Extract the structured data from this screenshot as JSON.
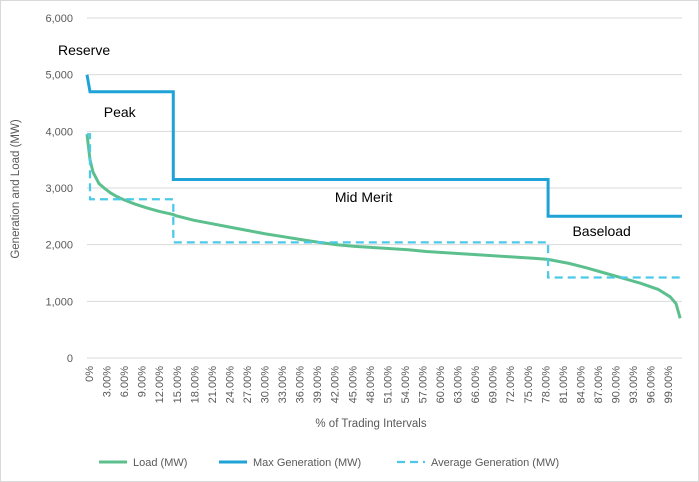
{
  "chart_data": {
    "type": "line",
    "title": "",
    "xlabel": "% of Trading Intervals",
    "ylabel": "Generation and Load (MW)",
    "ylim": [
      0,
      6000
    ],
    "y_ticks": [
      "0",
      "1,000",
      "2,000",
      "3,000",
      "4,000",
      "5,000",
      "6,000"
    ],
    "x_ticks": [
      "0%",
      "3.00%",
      "6.00%",
      "9.00%",
      "12.00%",
      "15.00%",
      "18.00%",
      "21.00%",
      "24.00%",
      "27.00%",
      "30.00%",
      "33.00%",
      "36.00%",
      "39.00%",
      "42.00%",
      "45.00%",
      "48.00%",
      "51.00%",
      "54.00%",
      "57.00%",
      "60.00%",
      "63.00%",
      "66.00%",
      "69.00%",
      "72.00%",
      "75.00%",
      "78.00%",
      "81.00%",
      "84.00%",
      "87.00%",
      "90.00%",
      "93.00%",
      "96.00%",
      "99.00%"
    ],
    "grid": true,
    "legend_position": "bottom",
    "series": [
      {
        "name": "Load (MW)",
        "color": "#5cc08e",
        "style": "solid",
        "x": [
          0,
          0.5,
          1,
          2,
          3,
          4,
          5,
          6,
          8,
          10,
          12,
          14.5,
          15,
          18,
          21,
          24,
          27,
          30,
          33,
          36,
          39,
          42,
          45,
          48,
          51,
          54,
          57,
          60,
          63,
          66,
          69,
          72,
          75,
          77.5,
          78,
          81,
          84,
          87,
          90,
          93,
          96,
          98,
          99,
          99.7
        ],
        "y": [
          3950,
          3500,
          3280,
          3080,
          2990,
          2910,
          2850,
          2800,
          2720,
          2650,
          2590,
          2530,
          2510,
          2430,
          2370,
          2310,
          2250,
          2190,
          2140,
          2090,
          2040,
          2000,
          1970,
          1950,
          1930,
          1910,
          1880,
          1860,
          1840,
          1820,
          1800,
          1780,
          1760,
          1740,
          1730,
          1670,
          1590,
          1500,
          1410,
          1320,
          1210,
          1080,
          960,
          700
        ]
      },
      {
        "name": "Max Generation (MW)",
        "color": "#1fa3d6",
        "style": "solid",
        "x": [
          0,
          0.5,
          0.5,
          14.5,
          14.5,
          77.5,
          77.5,
          100
        ],
        "y": [
          5000,
          4700,
          4700,
          4700,
          3150,
          3150,
          2500,
          2500
        ]
      },
      {
        "name": "Average Generation (MW)",
        "color": "#4cc9e8",
        "style": "dashed",
        "x": [
          0,
          0.5,
          0.5,
          14.5,
          14.5,
          77.5,
          77.5,
          100
        ],
        "y": [
          3950,
          3950,
          2800,
          2800,
          2040,
          2040,
          1420,
          1420
        ]
      }
    ],
    "annotations": [
      {
        "text": "Reserve",
        "x": 0.3,
        "y": 5350
      },
      {
        "text": "Peak",
        "x": 5.5,
        "y": 4250
      },
      {
        "text": "Mid Merit",
        "x": 46.5,
        "y": 2750
      },
      {
        "text": "Baseload",
        "x": 86.5,
        "y": 2150
      }
    ]
  }
}
